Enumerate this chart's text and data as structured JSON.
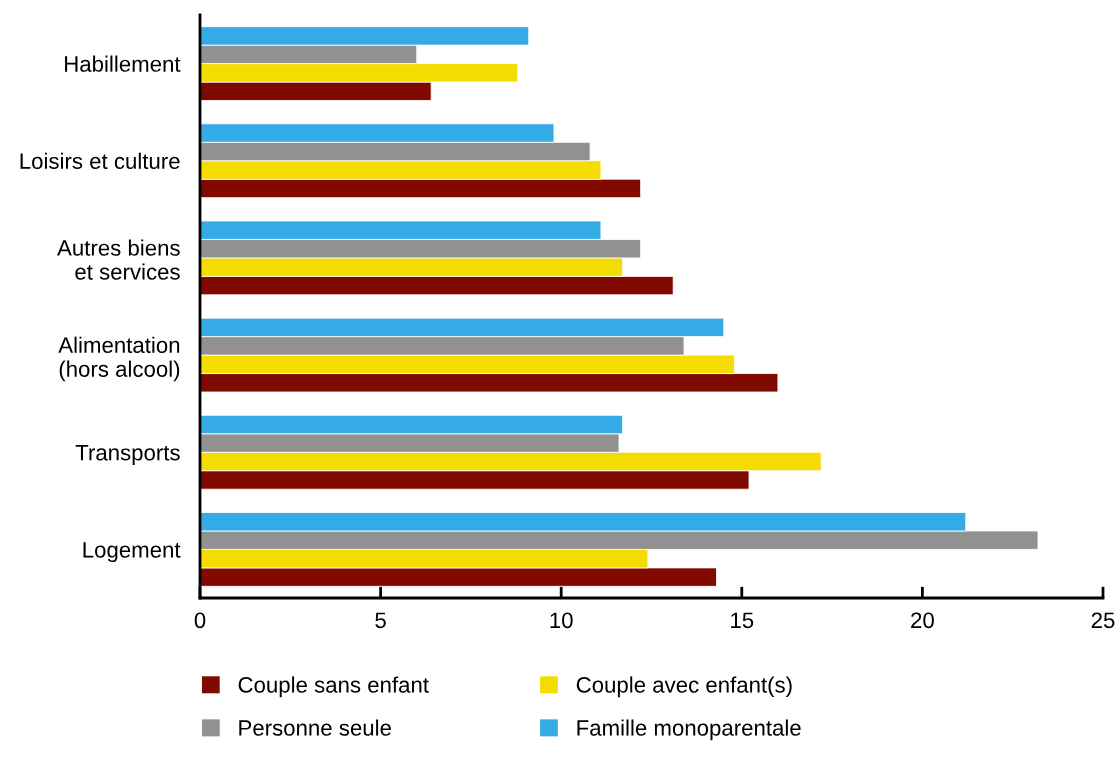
{
  "chart_data": {
    "type": "bar",
    "orientation": "horizontal",
    "categories": [
      "Habillement",
      "Loisirs et culture",
      "Autres biens\net services",
      "Alimentation\n(hors alcool)",
      "Transports",
      "Logement"
    ],
    "series": [
      {
        "name": "Couple sans enfant",
        "color": "#800a00",
        "values": [
          6.4,
          12.2,
          13.1,
          16.0,
          15.2,
          14.3
        ]
      },
      {
        "name": "Couple avec enfant(s)",
        "color": "#f5dc00",
        "values": [
          8.8,
          11.1,
          11.7,
          14.8,
          17.2,
          12.4
        ]
      },
      {
        "name": "Personne seule",
        "color": "#919191",
        "values": [
          6.0,
          10.8,
          12.2,
          13.4,
          11.6,
          23.2
        ]
      },
      {
        "name": "Famille monoparentale",
        "color": "#35abe5",
        "values": [
          9.1,
          9.8,
          11.1,
          14.5,
          11.7,
          21.2
        ]
      }
    ],
    "xlim": [
      0,
      25
    ],
    "xticks": [
      0,
      5,
      10,
      15,
      20,
      25
    ],
    "grid": false,
    "legend": "bottom"
  }
}
